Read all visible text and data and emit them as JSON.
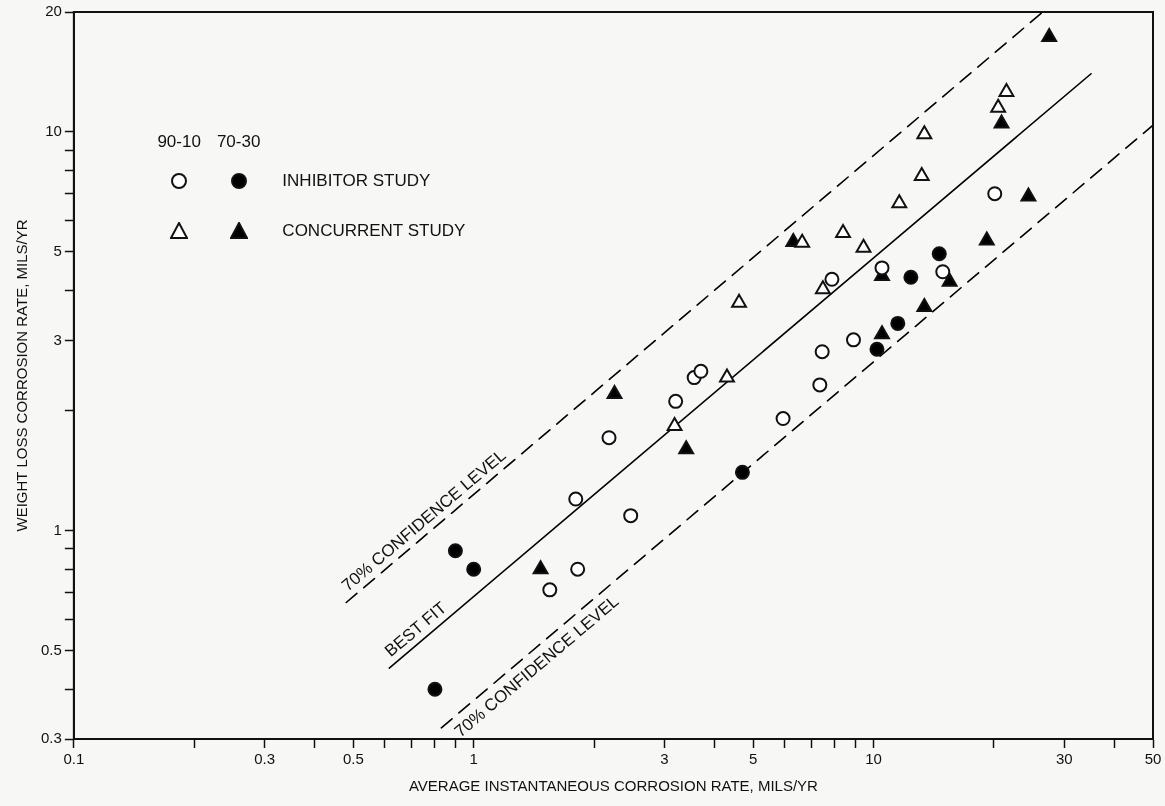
{
  "chart_data": {
    "type": "scatter",
    "xlabel": "AVERAGE INSTANTANEOUS CORROSION RATE, MILS/YR",
    "ylabel": "WEIGHT LOSS CORROSION RATE, MILS/YR",
    "log": "xy",
    "xlim": [
      0.1,
      50
    ],
    "ylim": [
      0.3,
      20
    ],
    "xticks": [
      0.1,
      {
        "value": 0.2,
        "label": null
      },
      0.3,
      {
        "value": 0.4,
        "label": null
      },
      0.5,
      {
        "value": 0.6,
        "label": null
      },
      {
        "value": 0.7,
        "label": null
      },
      {
        "value": 0.8,
        "label": null
      },
      {
        "value": 0.9,
        "label": null
      },
      1,
      {
        "value": 2,
        "label": null
      },
      3,
      {
        "value": 4,
        "label": null
      },
      5,
      {
        "value": 6,
        "label": null
      },
      {
        "value": 7,
        "label": null
      },
      {
        "value": 8,
        "label": null
      },
      {
        "value": 9,
        "label": null
      },
      10,
      {
        "value": 20,
        "label": null
      },
      30,
      {
        "value": 40,
        "label": null
      },
      50
    ],
    "yticks": [
      0.3,
      {
        "value": 0.4,
        "label": null
      },
      0.5,
      {
        "value": 0.6,
        "label": null
      },
      {
        "value": 0.7,
        "label": null
      },
      {
        "value": 0.8,
        "label": null
      },
      {
        "value": 0.9,
        "label": null
      },
      1,
      {
        "value": 2,
        "label": null
      },
      3,
      {
        "value": 4,
        "label": null
      },
      5,
      {
        "value": 6,
        "label": null
      },
      {
        "value": 7,
        "label": null
      },
      {
        "value": 8,
        "label": null
      },
      {
        "value": 9,
        "label": null
      },
      10,
      20
    ],
    "legend": "top left",
    "annotations": [
      "90-10",
      "70-30"
    ],
    "series": [
      {
        "marker": "circle",
        "color": "#ffffff",
        "x": [
          1.82,
          1.55,
          1.8,
          2.47,
          2.18,
          3.2,
          3.56,
          3.7,
          7.87,
          10.5,
          5.94,
          7.34,
          7.44,
          8.91,
          20.1,
          14.9
        ],
        "values": [
          0.8,
          0.71,
          1.2,
          1.09,
          1.71,
          2.11,
          2.42,
          2.51,
          4.27,
          4.56,
          1.91,
          2.32,
          2.81,
          3.01,
          7.0,
          4.46
        ]
      },
      {
        "name": "INHIBITOR STUDY",
        "marker": "circle",
        "color": "#000000",
        "x": [
          0.9,
          1.0,
          0.8,
          4.7,
          10.2,
          11.5,
          14.6,
          12.4
        ],
        "values": [
          0.89,
          0.8,
          0.4,
          1.4,
          2.85,
          3.31,
          4.95,
          4.32
        ]
      },
      {
        "marker": "triangle",
        "color": "#ffffff",
        "x": [
          3.18,
          4.3,
          4.61,
          6.63,
          8.39,
          9.44,
          7.47,
          21.5,
          20.5,
          13.4,
          13.2,
          11.6
        ],
        "values": [
          1.83,
          2.42,
          3.73,
          5.27,
          5.58,
          5.12,
          4.03,
          12.6,
          11.5,
          9.87,
          7.76,
          6.63
        ]
      },
      {
        "name": "CONCURRENT STUDY",
        "marker": "triangle",
        "color": "#000000",
        "x": [
          1.47,
          2.25,
          3.4,
          6.3,
          10.5,
          10.5,
          27.5,
          20.9,
          24.4,
          19.2,
          15.5,
          13.4
        ],
        "values": [
          0.8,
          2.2,
          1.6,
          5.3,
          4.35,
          3.11,
          17.3,
          10.5,
          6.89,
          5.34,
          4.21,
          3.64
        ]
      },
      {
        "name": "70% CONFIDENCE LEVEL",
        "type": "line",
        "line_style": "dashed",
        "marker": "none",
        "color": "#000000",
        "x": [
          0.48,
          26.5
        ],
        "values": [
          0.66,
          20
        ]
      },
      {
        "name": "BEST FIT",
        "type": "line",
        "line_style": "solid",
        "marker": "none",
        "color": "#000000",
        "x": [
          0.615,
          35
        ],
        "values": [
          0.452,
          14
        ]
      },
      {
        "name": "70% CONFIDENCE LEVEL",
        "type": "line",
        "line_style": "dashed",
        "marker": "none",
        "color": "#000000",
        "x": [
          0.83,
          50
        ],
        "values": [
          0.32,
          10.4
        ]
      }
    ]
  }
}
